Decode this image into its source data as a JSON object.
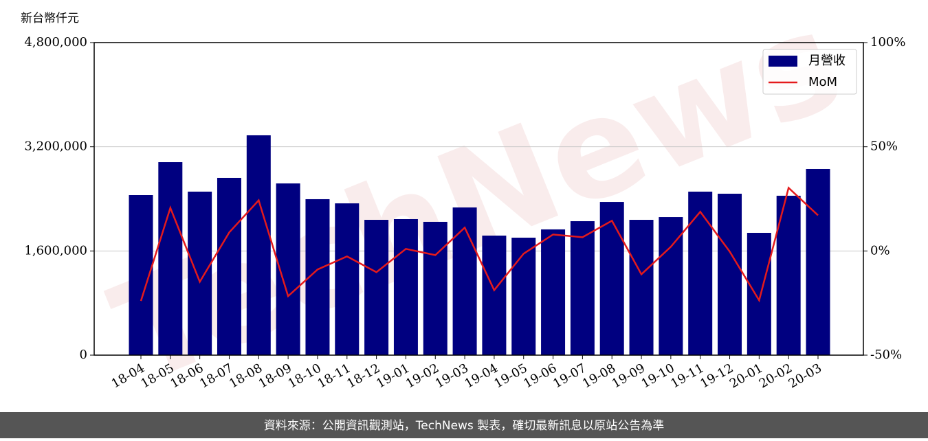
{
  "chart_data": {
    "type": "bar",
    "y_label": "新台幣仟元",
    "watermark": "TechNews",
    "source": "資料來源：公開資訊觀測站，TechNews 製表，確切最新訊息以原站公告為準",
    "categories": [
      "18-04",
      "18-05",
      "18-06",
      "18-07",
      "18-08",
      "18-09",
      "18-10",
      "18-11",
      "18-12",
      "19-01",
      "19-02",
      "19-03",
      "19-04",
      "19-05",
      "19-06",
      "19-07",
      "19-08",
      "19-09",
      "19-10",
      "19-11",
      "19-12",
      "20-01",
      "20-02",
      "20-03"
    ],
    "series": [
      {
        "name": "月營收",
        "type": "bar",
        "color": "#000080",
        "values": [
          2458000,
          2964000,
          2511000,
          2722000,
          3376000,
          2637000,
          2395000,
          2331000,
          2078000,
          2089000,
          2047000,
          2268000,
          1836000,
          1804000,
          1931000,
          2057000,
          2352000,
          2078000,
          2120000,
          2511000,
          2479000,
          1878000,
          2448000,
          2859000
        ]
      },
      {
        "name": "MoM",
        "type": "line",
        "axis": "y2",
        "color": "#e41a1c",
        "values": [
          -24,
          20.7,
          -14.8,
          8.9,
          24.3,
          -21.7,
          -8.9,
          -2.6,
          -10.2,
          1,
          -2,
          11.2,
          -18.8,
          -1.3,
          7.9,
          6.6,
          14.5,
          -11.2,
          2,
          18.8,
          -0.3,
          -23.7,
          30.3,
          17.1
        ]
      }
    ],
    "ylim": [
      0,
      4800000
    ],
    "yticks": [
      0,
      {
        "value": 1600000,
        "label": "1,600,000"
      },
      {
        "value": 3200000,
        "label": "3,200,000"
      },
      {
        "value": 4800000,
        "label": "4,800,000"
      }
    ],
    "y2lim": [
      -50,
      100
    ],
    "y2ticks": [
      {
        "value": -50,
        "label": "-50%"
      },
      {
        "value": 0,
        "label": "0%"
      },
      {
        "value": 50,
        "label": "50%"
      },
      {
        "value": 100,
        "label": "100%"
      }
    ],
    "grid": true,
    "legend": "upper right"
  }
}
